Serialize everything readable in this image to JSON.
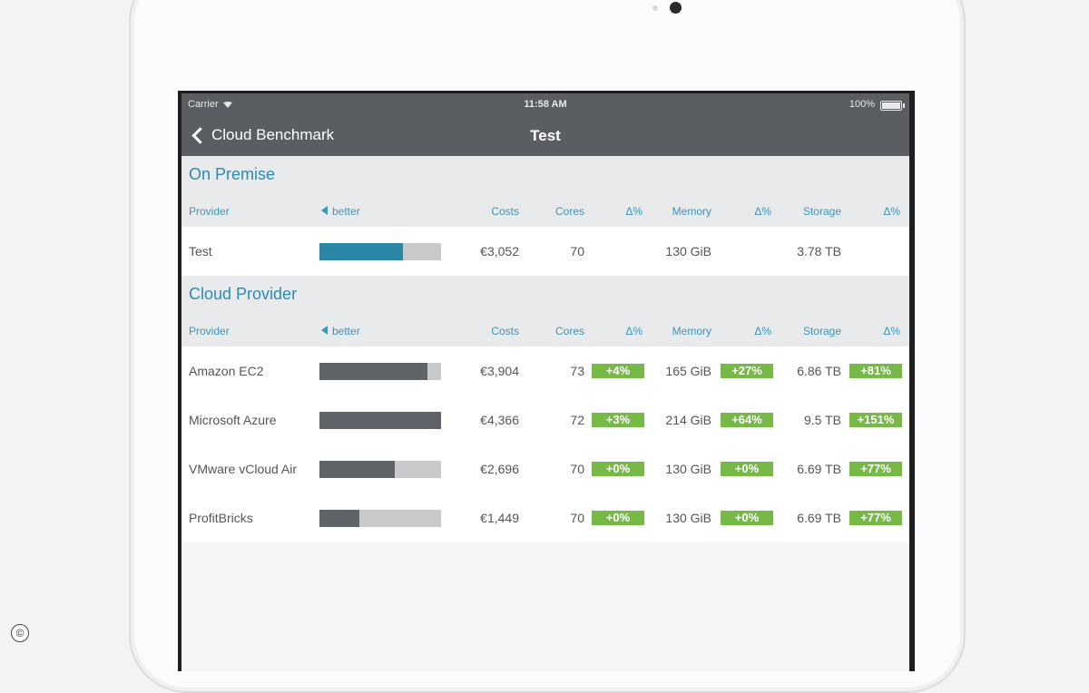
{
  "status": {
    "carrier": "Carrier",
    "time": "11:58 AM",
    "battery": "100%"
  },
  "nav": {
    "back_label": "Cloud Benchmark",
    "title": "Test"
  },
  "columns": {
    "provider": "Provider",
    "better": "better",
    "costs": "Costs",
    "cores": "Cores",
    "delta": "Δ%",
    "memory": "Memory",
    "storage": "Storage"
  },
  "sections": [
    {
      "title": "On Premise",
      "rows": [
        {
          "provider": "Test",
          "bar_fraction": 0.69,
          "bar_color": "#2b86a8",
          "costs": "€3,052",
          "cores": "70",
          "cores_delta": "",
          "memory": "130 GiB",
          "memory_delta": "",
          "storage": "3.78 TB",
          "storage_delta": ""
        }
      ]
    },
    {
      "title": "Cloud Provider",
      "rows": [
        {
          "provider": "Amazon EC2",
          "bar_fraction": 0.89,
          "bar_color": "#5f6368",
          "costs": "€3,904",
          "cores": "73",
          "cores_delta": "+4%",
          "memory": "165 GiB",
          "memory_delta": "+27%",
          "storage": "6.86 TB",
          "storage_delta": "+81%"
        },
        {
          "provider": "Microsoft Azure",
          "bar_fraction": 1.0,
          "bar_color": "#5f6368",
          "costs": "€4,366",
          "cores": "72",
          "cores_delta": "+3%",
          "memory": "214 GiB",
          "memory_delta": "+64%",
          "storage": "9.5 TB",
          "storage_delta": "+151%"
        },
        {
          "provider": "VMware vCloud Air",
          "bar_fraction": 0.62,
          "bar_color": "#5f6368",
          "costs": "€2,696",
          "cores": "70",
          "cores_delta": "+0%",
          "memory": "130 GiB",
          "memory_delta": "+0%",
          "storage": "6.69 TB",
          "storage_delta": "+77%"
        },
        {
          "provider": "ProfitBricks",
          "bar_fraction": 0.33,
          "bar_color": "#5f6368",
          "costs": "€1,449",
          "cores": "70",
          "cores_delta": "+0%",
          "memory": "130 GiB",
          "memory_delta": "+0%",
          "storage": "6.69 TB",
          "storage_delta": "+77%"
        }
      ]
    }
  ],
  "colors": {
    "accent": "#2b8bb0",
    "nav_bg": "#5a5d61",
    "badge_green": "#76b947"
  },
  "icons": {
    "back": "chevron-left-icon",
    "wifi": "wifi-icon",
    "battery": "battery-icon",
    "sort": "triangle-left-icon",
    "copyright": "copyright-icon"
  },
  "watermark": "©"
}
